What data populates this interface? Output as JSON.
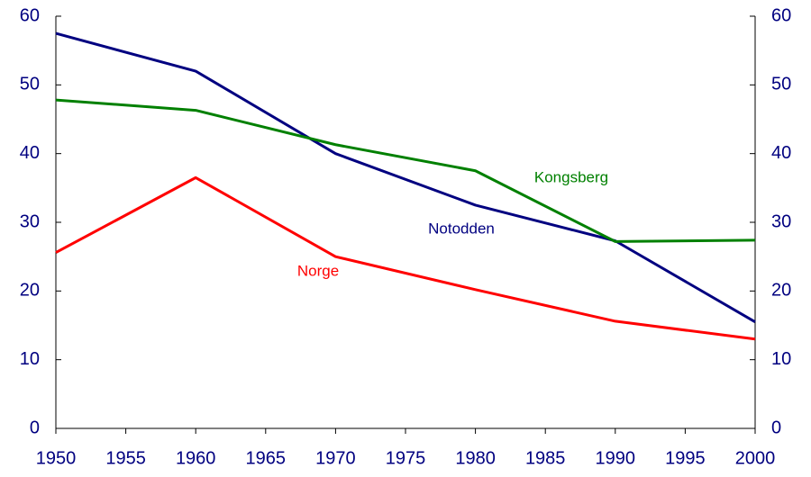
{
  "chart_data": {
    "type": "line",
    "x": [
      1950,
      1960,
      1970,
      1980,
      1990,
      2000
    ],
    "series": [
      {
        "name": "Notodden",
        "color": "#000080",
        "values": [
          57.5,
          52,
          40,
          32.5,
          27.3,
          15.5
        ]
      },
      {
        "name": "Kongsberg",
        "color": "#008000",
        "values": [
          47.8,
          46.3,
          41.3,
          37.5,
          27.2,
          27.4
        ]
      },
      {
        "name": "Norge",
        "color": "#ff0000",
        "values": [
          25.6,
          36.5,
          25,
          20.2,
          15.6,
          13
        ]
      }
    ],
    "xlim": [
      1950,
      2000
    ],
    "xticks": [
      1950,
      1955,
      1960,
      1965,
      1970,
      1975,
      1980,
      1985,
      1990,
      1995,
      2000
    ],
    "ylim": [
      0,
      60
    ],
    "yticks": [
      0,
      10,
      20,
      30,
      40,
      50,
      60
    ],
    "y2lim": [
      0,
      60
    ],
    "y2ticks": [
      0,
      10,
      20,
      30,
      40,
      50,
      60
    ],
    "grid": false
  }
}
